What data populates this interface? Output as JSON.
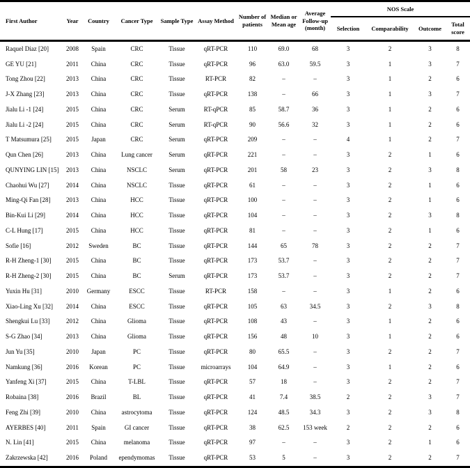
{
  "colors": {
    "text": "#000000",
    "background": "#ffffff",
    "rule": "#000000"
  },
  "table": {
    "nos_scale_label": "NOS Scale",
    "headers": [
      "First Author",
      "Year",
      "Country",
      "Cancer Type",
      "Sample Type",
      "Assay Method",
      "Number of patients",
      "Median or Mean age",
      "Average Follow-up (month)",
      "Selection",
      "Comparability",
      "Outcome",
      "Total score"
    ],
    "rows": [
      [
        "Raquel Diaz [20]",
        "2008",
        "Spain",
        "CRC",
        "Tissue",
        "qRT-PCR",
        "110",
        "69.0",
        "68",
        "3",
        "2",
        "3",
        "8"
      ],
      [
        "GE YU [21]",
        "2011",
        "China",
        "CRC",
        "Tissue",
        "qRT-PCR",
        "96",
        "63.0",
        "59.5",
        "3",
        "1",
        "3",
        "7"
      ],
      [
        "Tong Zhou [22]",
        "2013",
        "China",
        "CRC",
        "Tissue",
        "RT-PCR",
        "82",
        "–",
        "–",
        "3",
        "1",
        "2",
        "6"
      ],
      [
        "J-X Zhang [23]",
        "2013",
        "China",
        "CRC",
        "Tissue",
        "qRT-PCR",
        "138",
        "–",
        "66",
        "3",
        "1",
        "3",
        "7"
      ],
      [
        "Jialu Li -1 [24]",
        "2015",
        "China",
        "CRC",
        "Serum",
        "RT-qPCR",
        "85",
        "58.7",
        "36",
        "3",
        "1",
        "2",
        "6"
      ],
      [
        "Jialu Li -2 [24]",
        "2015",
        "China",
        "CRC",
        "Serum",
        "RT-qPCR",
        "90",
        "56.6",
        "32",
        "3",
        "1",
        "2",
        "6"
      ],
      [
        "T Matsumura [25]",
        "2015",
        "Japan",
        "CRC",
        "Serum",
        "qRT-PCR",
        "209",
        "–",
        "–",
        "4",
        "1",
        "2",
        "7"
      ],
      [
        "Qun Chen [26]",
        "2013",
        "China",
        "Lung cancer",
        "Serum",
        "qRT-PCR",
        "221",
        "–",
        "–",
        "3",
        "2",
        "1",
        "6"
      ],
      [
        "QUNYING LIN [15]",
        "2013",
        "China",
        "NSCLC",
        "Serum",
        "qRT-PCR",
        "201",
        "58",
        "23",
        "3",
        "2",
        "3",
        "8"
      ],
      [
        "Chaohui Wu [27]",
        "2014",
        "China",
        "NSCLC",
        "Tissue",
        "qRT-PCR",
        "61",
        "–",
        "–",
        "3",
        "2",
        "1",
        "6"
      ],
      [
        "Ming-Qi Fan [28]",
        "2013",
        "China",
        "HCC",
        "Tissue",
        "qRT-PCR",
        "100",
        "–",
        "–",
        "3",
        "2",
        "1",
        "6"
      ],
      [
        "Bin-Kui Li [29]",
        "2014",
        "China",
        "HCC",
        "Tissue",
        "qRT-PCR",
        "104",
        "–",
        "–",
        "3",
        "2",
        "3",
        "8"
      ],
      [
        "C-L Hung [17]",
        "2015",
        "China",
        "HCC",
        "Tissue",
        "qRT-PCR",
        "81",
        "–",
        "–",
        "3",
        "2",
        "1",
        "6"
      ],
      [
        "Sofie [16]",
        "2012",
        "Sweden",
        "BC",
        "Tissue",
        "qRT-PCR",
        "144",
        "65",
        "78",
        "3",
        "2",
        "2",
        "7"
      ],
      [
        "R-H Zheng-1 [30]",
        "2015",
        "China",
        "BC",
        "Tissue",
        "qRT-PCR",
        "173",
        "53.7",
        "–",
        "3",
        "2",
        "2",
        "7"
      ],
      [
        "R-H Zheng-2 [30]",
        "2015",
        "China",
        "BC",
        "Serum",
        "qRT-PCR",
        "173",
        "53.7",
        "–",
        "3",
        "2",
        "2",
        "7"
      ],
      [
        "Yuxin Hu [31]",
        "2010",
        "Germany",
        "ESCC",
        "Tissue",
        "RT-PCR",
        "158",
        "–",
        "–",
        "3",
        "1",
        "2",
        "6"
      ],
      [
        "Xiao-Ling Xu [32]",
        "2014",
        "China",
        "ESCC",
        "Tissue",
        "qRT-PCR",
        "105",
        "63",
        "34.5",
        "3",
        "2",
        "3",
        "8"
      ],
      [
        "Shengkui Lu [33]",
        "2012",
        "China",
        "Glioma",
        "Tissue",
        "qRT-PCR",
        "108",
        "43",
        "–",
        "3",
        "1",
        "2",
        "6"
      ],
      [
        "S-G Zhao [34]",
        "2013",
        "China",
        "Glioma",
        "Tissue",
        "qRT-PCR",
        "156",
        "48",
        "10",
        "3",
        "1",
        "2",
        "6"
      ],
      [
        "Jun Yu [35]",
        "2010",
        "Japan",
        "PC",
        "Tissue",
        "qRT-PCR",
        "80",
        "65.5",
        "–",
        "3",
        "2",
        "2",
        "7"
      ],
      [
        "Namkung [36]",
        "2016",
        "Korean",
        "PC",
        "Tissue",
        "microarrays",
        "104",
        "64.9",
        "–",
        "3",
        "1",
        "2",
        "6"
      ],
      [
        "Yanfeng Xi [37]",
        "2015",
        "China",
        "T-LBL",
        "Tissue",
        "qRT-PCR",
        "57",
        "18",
        "–",
        "3",
        "2",
        "2",
        "7"
      ],
      [
        "Robaina [38]",
        "2016",
        "Brazil",
        "BL",
        "Tissue",
        "qRT-PCR",
        "41",
        "7.4",
        "38.5",
        "2",
        "2",
        "3",
        "7"
      ],
      [
        "Feng Zhi [39]",
        "2010",
        "China",
        "astrocytoma",
        "Tissue",
        "qRT-PCR",
        "124",
        "48.5",
        "34.3",
        "3",
        "2",
        "3",
        "8"
      ],
      [
        "AYERBES [40]",
        "2011",
        "Spain",
        "GI cancer",
        "Tissue",
        "qRT-PCR",
        "38",
        "62.5",
        "153 week",
        "2",
        "2",
        "2",
        "6"
      ],
      [
        "N. Lin [41]",
        "2015",
        "China",
        "melanoma",
        "Tissue",
        "qRT-PCR",
        "97",
        "–",
        "–",
        "3",
        "2",
        "1",
        "6"
      ],
      [
        "Zakrzewska [42]",
        "2016",
        "Poland",
        "ependymomas",
        "Tissue",
        "qRT-PCR",
        "53",
        "5",
        "–",
        "3",
        "2",
        "2",
        "7"
      ]
    ]
  }
}
